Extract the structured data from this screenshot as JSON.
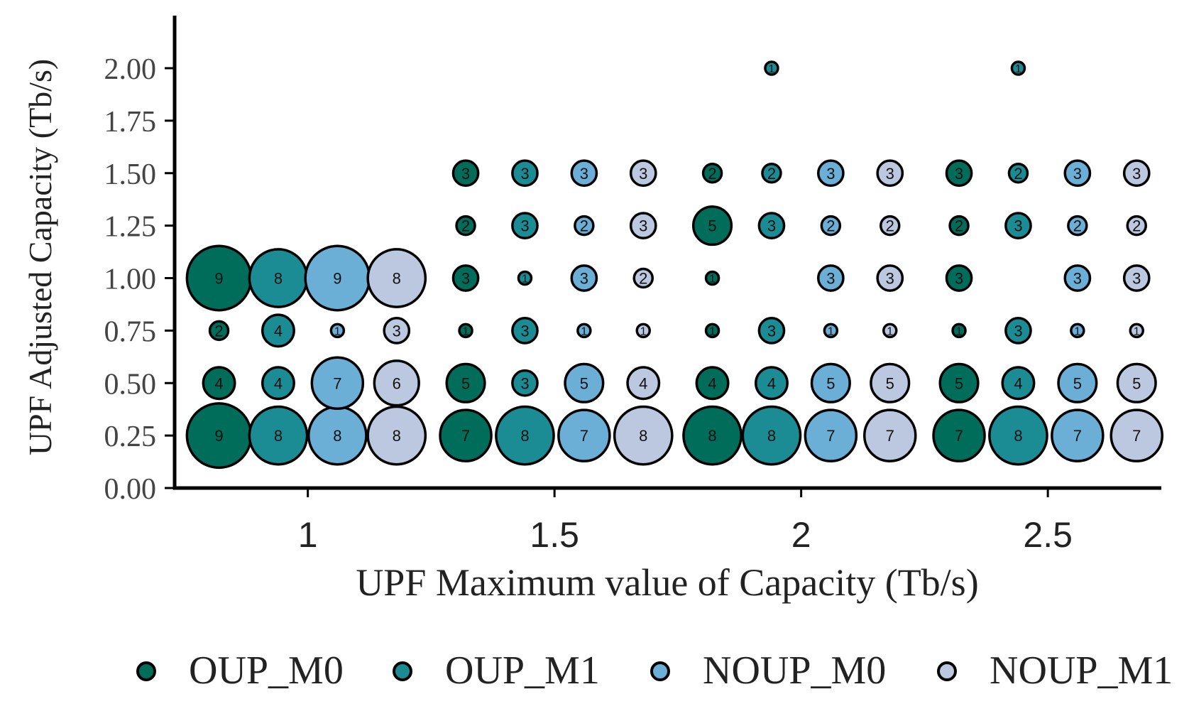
{
  "chart_data": {
    "type": "scatter",
    "xlabel": "UPF Maximum value of Capacity (Tb/s)",
    "ylabel": "UPF Adjusted Capacity (Tb/s)",
    "x_ticks": [
      "1",
      "1.5",
      "2",
      "2.5"
    ],
    "x_tick_values": [
      1,
      1.5,
      2,
      2.5
    ],
    "y_ticks": [
      "0.00",
      "0.25",
      "0.50",
      "0.75",
      "1.00",
      "1.25",
      "1.50",
      "1.75",
      "2.00"
    ],
    "ylim": [
      0,
      2.25
    ],
    "xlim": [
      0.73,
      2.73
    ],
    "dodge": [
      -0.18,
      -0.06,
      0.06,
      0.18
    ],
    "grid": false,
    "legend_position": "bottom",
    "size_encodes": "count",
    "series": [
      {
        "name": "OUP_M0",
        "color": "#006d5b",
        "points": [
          {
            "x": 1,
            "y": 0.25,
            "count": 9
          },
          {
            "x": 1,
            "y": 0.5,
            "count": 4
          },
          {
            "x": 1,
            "y": 0.75,
            "count": 2
          },
          {
            "x": 1,
            "y": 1.0,
            "count": 9
          },
          {
            "x": 1.5,
            "y": 0.25,
            "count": 7
          },
          {
            "x": 1.5,
            "y": 0.5,
            "count": 5
          },
          {
            "x": 1.5,
            "y": 0.75,
            "count": 1
          },
          {
            "x": 1.5,
            "y": 1.0,
            "count": 3
          },
          {
            "x": 1.5,
            "y": 1.25,
            "count": 2
          },
          {
            "x": 1.5,
            "y": 1.5,
            "count": 3
          },
          {
            "x": 2,
            "y": 0.25,
            "count": 8
          },
          {
            "x": 2,
            "y": 0.5,
            "count": 4
          },
          {
            "x": 2,
            "y": 0.75,
            "count": 1
          },
          {
            "x": 2,
            "y": 1.0,
            "count": 1
          },
          {
            "x": 2,
            "y": 1.25,
            "count": 5
          },
          {
            "x": 2,
            "y": 1.5,
            "count": 2
          },
          {
            "x": 2.5,
            "y": 0.25,
            "count": 7
          },
          {
            "x": 2.5,
            "y": 0.5,
            "count": 5
          },
          {
            "x": 2.5,
            "y": 0.75,
            "count": 1
          },
          {
            "x": 2.5,
            "y": 1.0,
            "count": 3
          },
          {
            "x": 2.5,
            "y": 1.25,
            "count": 2
          },
          {
            "x": 2.5,
            "y": 1.5,
            "count": 3
          }
        ]
      },
      {
        "name": "OUP_M1",
        "color": "#1c8c94",
        "points": [
          {
            "x": 1,
            "y": 0.25,
            "count": 8
          },
          {
            "x": 1,
            "y": 0.5,
            "count": 4
          },
          {
            "x": 1,
            "y": 0.75,
            "count": 4
          },
          {
            "x": 1,
            "y": 1.0,
            "count": 8
          },
          {
            "x": 1.5,
            "y": 0.25,
            "count": 8
          },
          {
            "x": 1.5,
            "y": 0.5,
            "count": 3
          },
          {
            "x": 1.5,
            "y": 0.75,
            "count": 3
          },
          {
            "x": 1.5,
            "y": 1.0,
            "count": 1
          },
          {
            "x": 1.5,
            "y": 1.25,
            "count": 3
          },
          {
            "x": 1.5,
            "y": 1.5,
            "count": 3
          },
          {
            "x": 2,
            "y": 0.25,
            "count": 8
          },
          {
            "x": 2,
            "y": 0.5,
            "count": 4
          },
          {
            "x": 2,
            "y": 0.75,
            "count": 3
          },
          {
            "x": 2,
            "y": 1.25,
            "count": 3
          },
          {
            "x": 2,
            "y": 1.5,
            "count": 2
          },
          {
            "x": 2,
            "y": 2.0,
            "count": 1
          },
          {
            "x": 2.5,
            "y": 0.25,
            "count": 8
          },
          {
            "x": 2.5,
            "y": 0.5,
            "count": 4
          },
          {
            "x": 2.5,
            "y": 0.75,
            "count": 3
          },
          {
            "x": 2.5,
            "y": 1.25,
            "count": 3
          },
          {
            "x": 2.5,
            "y": 1.5,
            "count": 2
          },
          {
            "x": 2.5,
            "y": 2.0,
            "count": 1
          }
        ]
      },
      {
        "name": "NOUP_M0",
        "color": "#6baed6",
        "points": [
          {
            "x": 1,
            "y": 0.25,
            "count": 8
          },
          {
            "x": 1,
            "y": 0.5,
            "count": 7
          },
          {
            "x": 1,
            "y": 0.75,
            "count": 1
          },
          {
            "x": 1,
            "y": 1.0,
            "count": 9
          },
          {
            "x": 1.5,
            "y": 0.25,
            "count": 7
          },
          {
            "x": 1.5,
            "y": 0.5,
            "count": 5
          },
          {
            "x": 1.5,
            "y": 0.75,
            "count": 1
          },
          {
            "x": 1.5,
            "y": 1.0,
            "count": 3
          },
          {
            "x": 1.5,
            "y": 1.25,
            "count": 2
          },
          {
            "x": 1.5,
            "y": 1.5,
            "count": 3
          },
          {
            "x": 2,
            "y": 0.25,
            "count": 7
          },
          {
            "x": 2,
            "y": 0.5,
            "count": 5
          },
          {
            "x": 2,
            "y": 0.75,
            "count": 1
          },
          {
            "x": 2,
            "y": 1.0,
            "count": 3
          },
          {
            "x": 2,
            "y": 1.25,
            "count": 2
          },
          {
            "x": 2,
            "y": 1.5,
            "count": 3
          },
          {
            "x": 2.5,
            "y": 0.25,
            "count": 7
          },
          {
            "x": 2.5,
            "y": 0.5,
            "count": 5
          },
          {
            "x": 2.5,
            "y": 0.75,
            "count": 1
          },
          {
            "x": 2.5,
            "y": 1.0,
            "count": 3
          },
          {
            "x": 2.5,
            "y": 1.25,
            "count": 2
          },
          {
            "x": 2.5,
            "y": 1.5,
            "count": 3
          }
        ]
      },
      {
        "name": "NOUP_M1",
        "color": "#bcc8e0",
        "points": [
          {
            "x": 1,
            "y": 0.25,
            "count": 8
          },
          {
            "x": 1,
            "y": 0.5,
            "count": 6
          },
          {
            "x": 1,
            "y": 0.75,
            "count": 3
          },
          {
            "x": 1,
            "y": 1.0,
            "count": 8
          },
          {
            "x": 1.5,
            "y": 0.25,
            "count": 8
          },
          {
            "x": 1.5,
            "y": 0.5,
            "count": 4
          },
          {
            "x": 1.5,
            "y": 0.75,
            "count": 1
          },
          {
            "x": 1.5,
            "y": 1.0,
            "count": 2
          },
          {
            "x": 1.5,
            "y": 1.25,
            "count": 3
          },
          {
            "x": 1.5,
            "y": 1.5,
            "count": 3
          },
          {
            "x": 2,
            "y": 0.25,
            "count": 7
          },
          {
            "x": 2,
            "y": 0.5,
            "count": 5
          },
          {
            "x": 2,
            "y": 0.75,
            "count": 1
          },
          {
            "x": 2,
            "y": 1.0,
            "count": 3
          },
          {
            "x": 2,
            "y": 1.25,
            "count": 2
          },
          {
            "x": 2,
            "y": 1.5,
            "count": 3
          },
          {
            "x": 2.5,
            "y": 0.25,
            "count": 7
          },
          {
            "x": 2.5,
            "y": 0.5,
            "count": 5
          },
          {
            "x": 2.5,
            "y": 0.75,
            "count": 1
          },
          {
            "x": 2.5,
            "y": 1.0,
            "count": 3
          },
          {
            "x": 2.5,
            "y": 1.25,
            "count": 2
          },
          {
            "x": 2.5,
            "y": 1.5,
            "count": 3
          }
        ]
      }
    ]
  }
}
